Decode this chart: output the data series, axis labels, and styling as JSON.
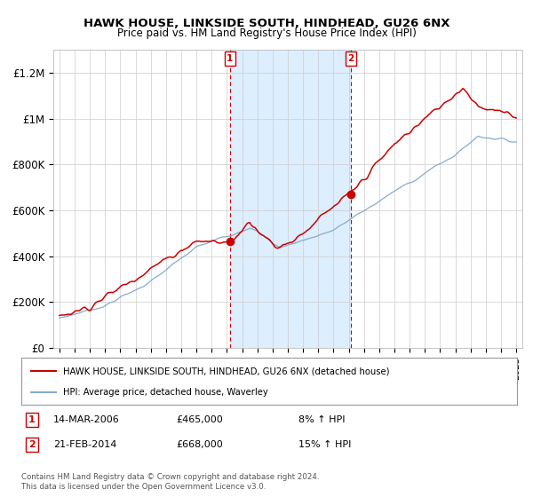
{
  "title": "HAWK HOUSE, LINKSIDE SOUTH, HINDHEAD, GU26 6NX",
  "subtitle": "Price paid vs. HM Land Registry's House Price Index (HPI)",
  "legend_line1": "HAWK HOUSE, LINKSIDE SOUTH, HINDHEAD, GU26 6NX (detached house)",
  "legend_line2": "HPI: Average price, detached house, Waverley",
  "sale1_date": "14-MAR-2006",
  "sale1_price": "£465,000",
  "sale1_hpi": "8% ↑ HPI",
  "sale2_date": "21-FEB-2014",
  "sale2_price": "£668,000",
  "sale2_hpi": "15% ↑ HPI",
  "footer": "Contains HM Land Registry data © Crown copyright and database right 2024.\nThis data is licensed under the Open Government Licence v3.0.",
  "price_line_color": "#cc0000",
  "hpi_line_color": "#88aacc",
  "sale1_x": 2006.2,
  "sale2_x": 2014.13,
  "sale1_y": 465000,
  "sale2_y": 668000,
  "ylim": [
    0,
    1300000
  ],
  "xlim_start": 1994.6,
  "xlim_end": 2025.4,
  "shaded_region_color": "#ddeeff",
  "background_color": "#ffffff",
  "grid_color": "#cccccc"
}
